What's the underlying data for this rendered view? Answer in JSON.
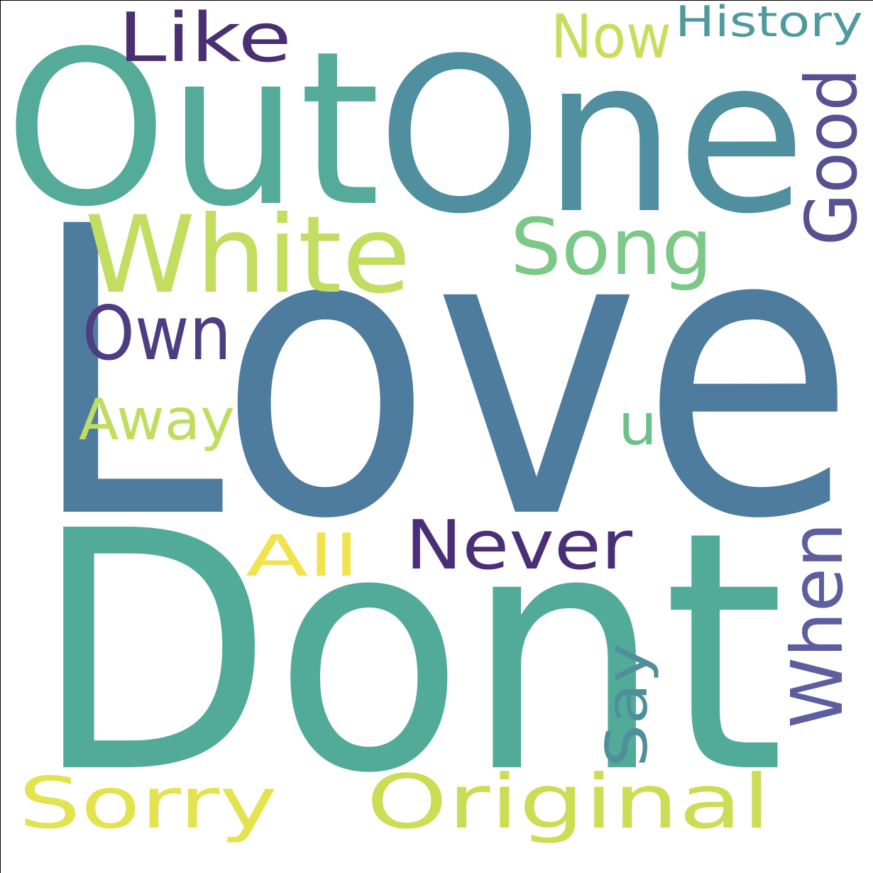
{
  "words": [
    {
      "text": "Love",
      "color": "#4e7c9e"
    },
    {
      "text": "Dont",
      "color": "#52ab99"
    },
    {
      "text": "Out",
      "color": "#55ab9a"
    },
    {
      "text": "One",
      "color": "#4f8f9f"
    },
    {
      "text": "White",
      "color": "#c2dd60"
    },
    {
      "text": "Like",
      "color": "#4a2f72"
    },
    {
      "text": "Now",
      "color": "#c6de5c"
    },
    {
      "text": "History",
      "color": "#4e9a9e"
    },
    {
      "text": "Good",
      "color": "#565193"
    },
    {
      "text": "Song",
      "color": "#7cc886"
    },
    {
      "text": "Own",
      "color": "#4f3d83"
    },
    {
      "text": "Away",
      "color": "#c1dd60"
    },
    {
      "text": "u",
      "color": "#6cc18a"
    },
    {
      "text": "Never",
      "color": "#4b2e78"
    },
    {
      "text": "All",
      "color": "#f1e34d"
    },
    {
      "text": "When",
      "color": "#5c5ea0"
    },
    {
      "text": "Say",
      "color": "#4f8f9c"
    },
    {
      "text": "Sorry",
      "color": "#e2e34e"
    },
    {
      "text": "Original",
      "color": "#cddc55"
    }
  ]
}
